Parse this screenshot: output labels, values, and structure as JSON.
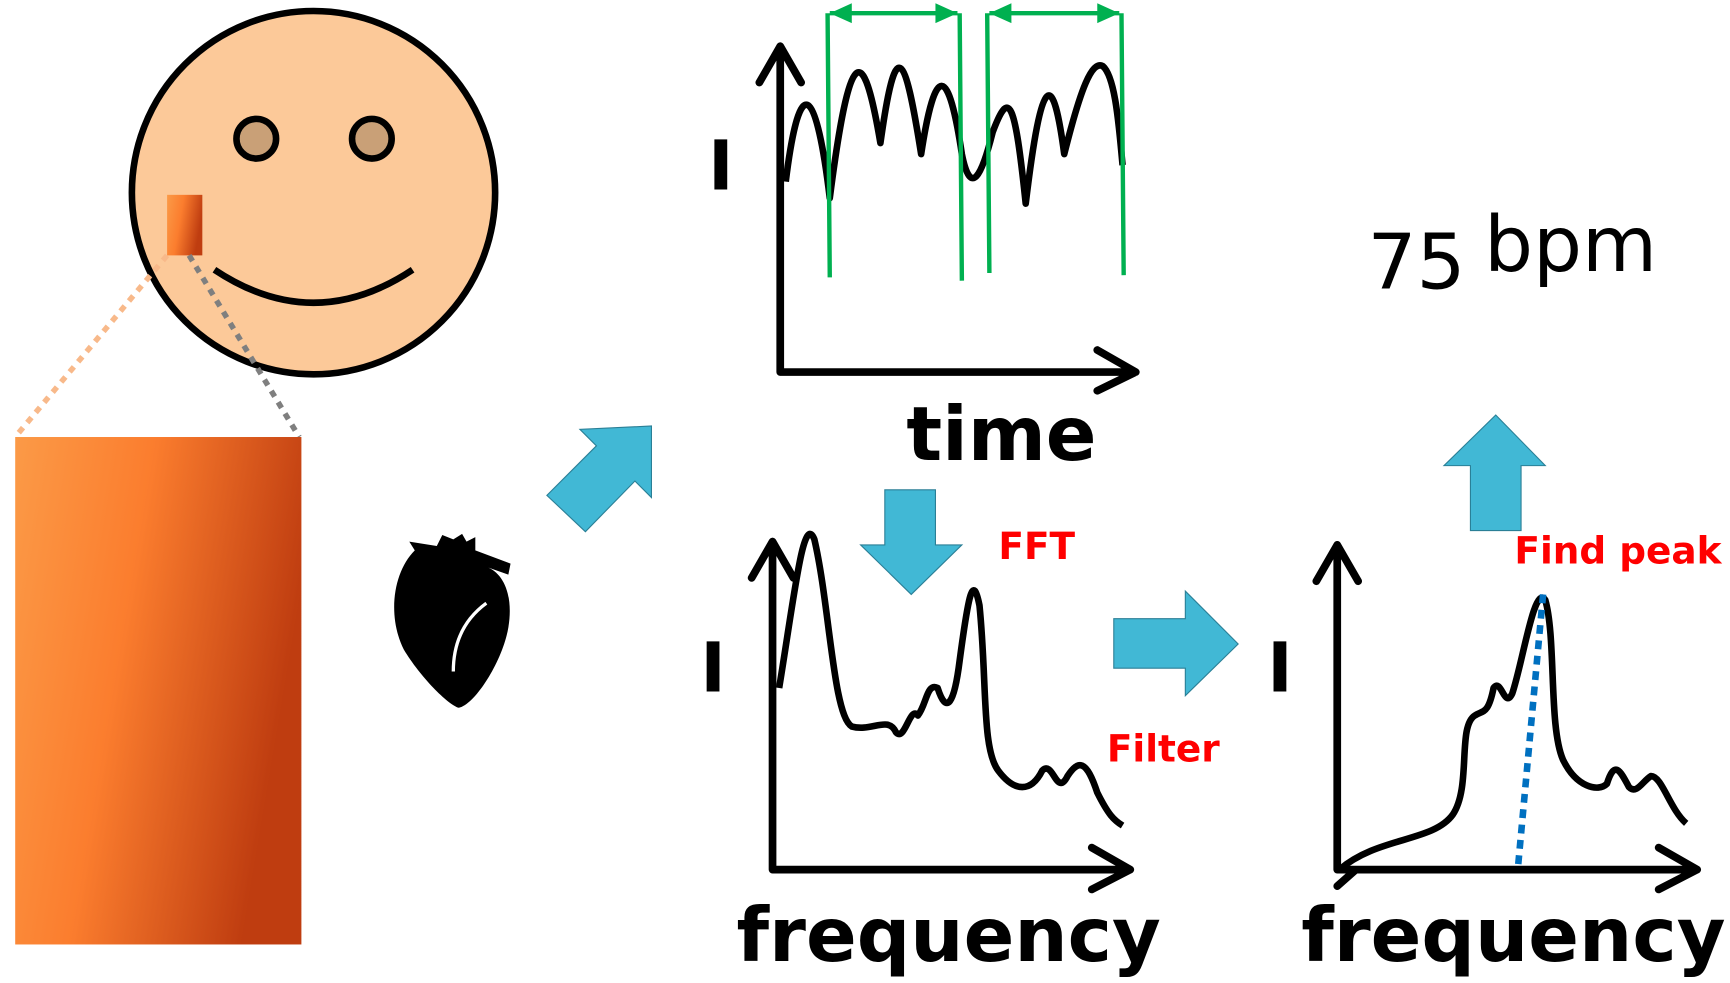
{
  "time_plot": {
    "y_label": "I",
    "x_label": "time"
  },
  "fft_plot": {
    "y_label": "I",
    "x_label": "frequency",
    "step": "FFT"
  },
  "filtered_plot": {
    "y_label": "I",
    "x_label": "frequency",
    "step": "Filter"
  },
  "peak_step": "Find peak",
  "result": {
    "value": "75",
    "unit": "bpm"
  }
}
